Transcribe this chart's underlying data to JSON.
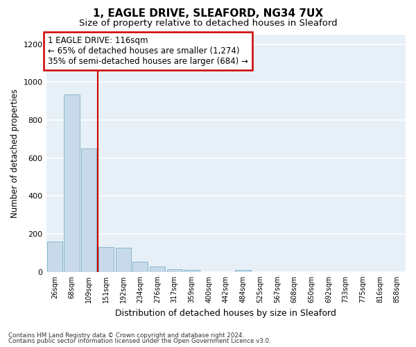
{
  "title_line1": "1, EAGLE DRIVE, SLEAFORD, NG34 7UX",
  "title_line2": "Size of property relative to detached houses in Sleaford",
  "xlabel": "Distribution of detached houses by size in Sleaford",
  "ylabel": "Number of detached properties",
  "footnote1": "Contains HM Land Registry data © Crown copyright and database right 2024.",
  "footnote2": "Contains public sector information licensed under the Open Government Licence v3.0.",
  "bar_labels": [
    "26sqm",
    "68sqm",
    "109sqm",
    "151sqm",
    "192sqm",
    "234sqm",
    "276sqm",
    "317sqm",
    "359sqm",
    "400sqm",
    "442sqm",
    "484sqm",
    "525sqm",
    "567sqm",
    "608sqm",
    "650sqm",
    "692sqm",
    "733sqm",
    "775sqm",
    "816sqm",
    "858sqm"
  ],
  "bar_values": [
    160,
    935,
    650,
    130,
    128,
    55,
    30,
    15,
    10,
    0,
    0,
    12,
    0,
    0,
    0,
    0,
    0,
    0,
    0,
    0,
    0
  ],
  "bar_color": "#c8daea",
  "bar_edge_color": "#7aafc8",
  "vline_color": "#cc0000",
  "vline_x": 2.5,
  "ylim": [
    0,
    1250
  ],
  "yticks": [
    0,
    200,
    400,
    600,
    800,
    1000,
    1200
  ],
  "annotation_box_text": "1 EAGLE DRIVE: 116sqm\n← 65% of detached houses are smaller (1,274)\n35% of semi-detached houses are larger (684) →",
  "annotation_box_color": "#ffffff",
  "annotation_box_edge_color": "#cc0000",
  "bg_color": "#e8f0f7",
  "grid_color": "#ffffff",
  "fig_bg": "#ffffff",
  "title_fontsize": 11,
  "subtitle_fontsize": 9.5,
  "ylabel_fontsize": 8.5,
  "xlabel_fontsize": 9,
  "tick_fontsize": 7,
  "annotation_fontsize": 8.5
}
